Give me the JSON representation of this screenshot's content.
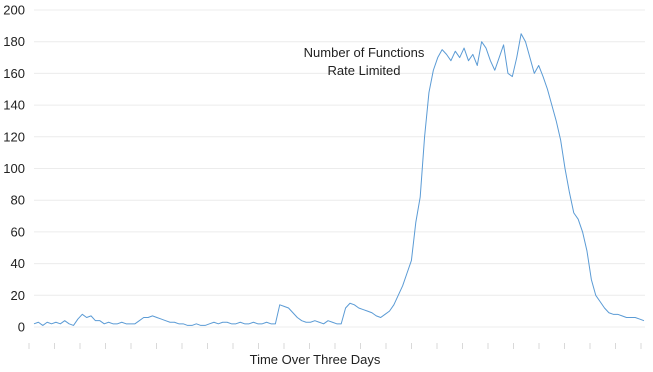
{
  "chart_data": {
    "type": "line",
    "title": "",
    "xlabel": "Time Over Three Days",
    "ylabel": "",
    "ylim": [
      0,
      200
    ],
    "yticks": [
      0,
      20,
      40,
      60,
      80,
      100,
      120,
      140,
      160,
      180,
      200
    ],
    "x_tick_count": 25,
    "grid": true,
    "annotation": [
      "Number of Functions",
      "Rate Limited"
    ],
    "series_color": "#5b9bd5",
    "series": [
      {
        "values": [
          2,
          3,
          1,
          3,
          2,
          3,
          2,
          4,
          2,
          1,
          5,
          8,
          6,
          7,
          4,
          4,
          2,
          3,
          2,
          2,
          3,
          2,
          2,
          2,
          4,
          6,
          6,
          7,
          6,
          5,
          4,
          3,
          3,
          2,
          2,
          1,
          1,
          2,
          1,
          1,
          2,
          3,
          2,
          3,
          3,
          2,
          2,
          3,
          2,
          2,
          3,
          2,
          2,
          3,
          2,
          2,
          14,
          13,
          12,
          9,
          6,
          4,
          3,
          3,
          4,
          3,
          2,
          4,
          3,
          2,
          2,
          12,
          15,
          14,
          12,
          11,
          10,
          9,
          7,
          6,
          8,
          10,
          14,
          20,
          26,
          34,
          42,
          66,
          82,
          120,
          148,
          162,
          170,
          175,
          172,
          168,
          174,
          170,
          176,
          168,
          172,
          165,
          180,
          176,
          168,
          162,
          170,
          178,
          160,
          158,
          170,
          185,
          180,
          170,
          160,
          165,
          158,
          150,
          140,
          130,
          118,
          100,
          85,
          72,
          68,
          60,
          48,
          30,
          20,
          16,
          12,
          9,
          8,
          8,
          7,
          6,
          6,
          6,
          5,
          4
        ]
      }
    ]
  }
}
